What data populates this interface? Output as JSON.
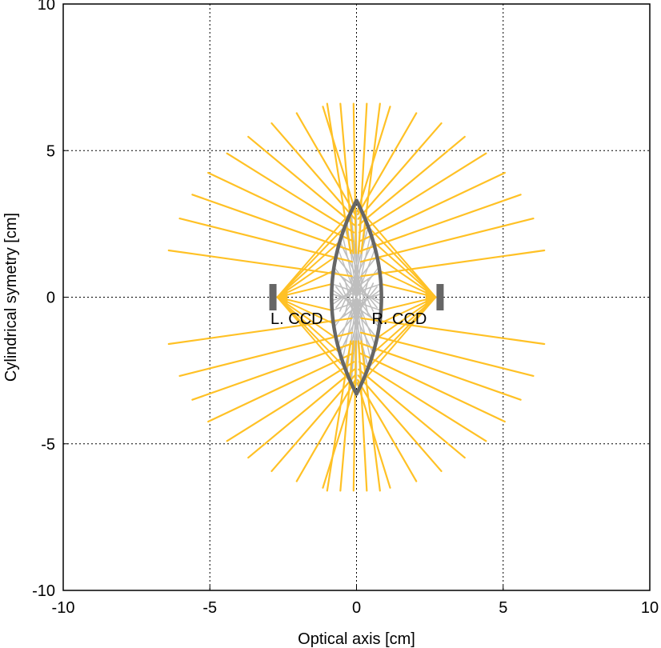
{
  "chart_data": {
    "type": "line",
    "title": "",
    "xlabel": "Optical axis [cm]",
    "ylabel": "Cylindrical symetry [cm]",
    "xlim": [
      -10,
      10
    ],
    "ylim": [
      -10,
      10
    ],
    "xticks": [
      -10,
      -5,
      0,
      5,
      10
    ],
    "yticks": [
      -10,
      -5,
      0,
      5,
      10
    ],
    "grid": true,
    "colors": {
      "rays": "#FFC125",
      "inner_rays": "#BEBEBE",
      "lens": "#666666",
      "ccd": "#666666",
      "grid": "#000000"
    },
    "lens": {
      "center_x": 0,
      "half_height": 3.3,
      "half_thickness": 0.85
    },
    "ccds": [
      {
        "label": "L. CCD",
        "x": -2.85,
        "y_range": [
          -0.45,
          0.45
        ],
        "label_xy": [
          -2.85,
          -0.75
        ]
      },
      {
        "label": "R. CCD",
        "x": 2.85,
        "y_range": [
          -0.45,
          0.45
        ],
        "label_xy": [
          0.6,
          -0.75
        ]
      }
    ],
    "rays": {
      "source_left": [
        -2.7,
        0
      ],
      "source_right": [
        2.7,
        0
      ],
      "outer_radius": 6.6,
      "outer_angles_deg": [
        80,
        72,
        64,
        56,
        48,
        40,
        32,
        24,
        14
      ]
    }
  }
}
